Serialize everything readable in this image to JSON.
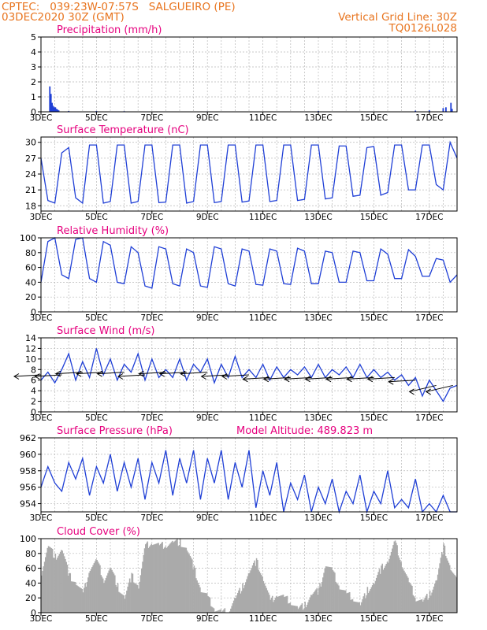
{
  "header": {
    "line1": "CPTEC:   039:23W-07:57S   SALGUEIRO (PE)",
    "line2": "03DEC2020 30Z (GMT)",
    "vgrid": "Vertical Grid Line: 30Z",
    "code": "TQ0126L028"
  },
  "colors": {
    "header": "#e8741e",
    "panel_title": "#e6007e",
    "line": "#1f3fd6",
    "cloud": "#aaaaaa",
    "wind_arrow": "#000000"
  },
  "chart_data": [
    {
      "id": "precip",
      "type": "bar",
      "title": "Precipitation (mm/h)",
      "xlabel": "",
      "ylabel": "",
      "ylim": [
        0,
        5
      ],
      "yticks": [
        "0",
        "1",
        "2",
        "3",
        "4",
        "5"
      ],
      "x_tick_labels": [
        "3DEC",
        "5DEC",
        "7DEC",
        "9DEC",
        "11DEC",
        "13DEC",
        "15DEC",
        "17DEC"
      ],
      "x_range_days": [
        0,
        15
      ],
      "series": [
        {
          "x": [
            0.32,
            0.36,
            0.4,
            0.44,
            0.48,
            0.52,
            0.56,
            0.6,
            0.64,
            1.0,
            2.0,
            3.0,
            6.0,
            10.0,
            13.5,
            14.0,
            14.5,
            14.6,
            14.78,
            14.82
          ],
          "values": [
            1.7,
            1.2,
            0.6,
            0.4,
            0.3,
            0.3,
            0.2,
            0.15,
            0.1,
            0.05,
            0.05,
            0.04,
            0.03,
            0.05,
            0.08,
            0.1,
            0.25,
            0.3,
            0.6,
            0.2
          ]
        }
      ]
    },
    {
      "id": "temp",
      "type": "line",
      "title": "Surface Temperature (nC)",
      "xlabel": "",
      "ylabel": "",
      "ylim": [
        17,
        31
      ],
      "yticks": [
        "18",
        "21",
        "24",
        "27",
        "30"
      ],
      "x_tick_labels": [
        "3DEC",
        "5DEC",
        "7DEC",
        "9DEC",
        "11DEC",
        "13DEC",
        "15DEC",
        "17DEC"
      ],
      "x_range_days": [
        0,
        15
      ],
      "series": [
        {
          "x": [
            0.0,
            0.25,
            0.5,
            0.75,
            1.0,
            1.25,
            1.5,
            1.75,
            2.0,
            2.25,
            2.5,
            2.75,
            3.0,
            3.25,
            3.5,
            3.75,
            4.0,
            4.25,
            4.5,
            4.75,
            5.0,
            5.25,
            5.5,
            5.75,
            6.0,
            6.25,
            6.5,
            6.75,
            7.0,
            7.25,
            7.5,
            7.75,
            8.0,
            8.25,
            8.5,
            8.75,
            9.0,
            9.25,
            9.5,
            9.75,
            10.0,
            10.25,
            10.5,
            10.75,
            11.0,
            11.25,
            11.5,
            11.75,
            12.0,
            12.25,
            12.5,
            12.75,
            13.0,
            13.25,
            13.5,
            13.75,
            14.0,
            14.25,
            14.5,
            14.75,
            15.0
          ],
          "values": [
            27,
            19,
            18.5,
            28,
            29,
            19.5,
            18.5,
            29.5,
            29.5,
            18.5,
            18.8,
            29.5,
            29.5,
            18.5,
            18.8,
            29.5,
            29.5,
            18.6,
            18.7,
            29.5,
            29.5,
            18.5,
            18.8,
            29.5,
            29.5,
            18.6,
            18.8,
            29.5,
            29.5,
            18.7,
            18.9,
            29.5,
            29.5,
            18.8,
            19,
            29.5,
            29.5,
            19,
            19.2,
            29.5,
            29.5,
            19.3,
            19.5,
            29.3,
            29.3,
            19.8,
            20,
            29,
            29.2,
            20,
            20.5,
            29.5,
            29.5,
            21,
            21,
            29.5,
            29.5,
            22,
            21,
            30,
            27
          ]
        }
      ]
    },
    {
      "id": "rh",
      "type": "line",
      "title": "Relative Humidity (%)",
      "xlabel": "",
      "ylabel": "",
      "ylim": [
        0,
        100
      ],
      "yticks": [
        "0",
        "20",
        "40",
        "60",
        "80",
        "100"
      ],
      "x_tick_labels": [
        "3DEC",
        "5DEC",
        "7DEC",
        "9DEC",
        "11DEC",
        "13DEC",
        "15DEC",
        "17DEC"
      ],
      "x_range_days": [
        0,
        15
      ],
      "series": [
        {
          "x": [
            0.0,
            0.25,
            0.5,
            0.75,
            1.0,
            1.25,
            1.5,
            1.75,
            2.0,
            2.25,
            2.5,
            2.75,
            3.0,
            3.25,
            3.5,
            3.75,
            4.0,
            4.25,
            4.5,
            4.75,
            5.0,
            5.25,
            5.5,
            5.75,
            6.0,
            6.25,
            6.5,
            6.75,
            7.0,
            7.25,
            7.5,
            7.75,
            8.0,
            8.25,
            8.5,
            8.75,
            9.0,
            9.25,
            9.5,
            9.75,
            10.0,
            10.25,
            10.5,
            10.75,
            11.0,
            11.25,
            11.5,
            11.75,
            12.0,
            12.25,
            12.5,
            12.75,
            13.0,
            13.25,
            13.5,
            13.75,
            14.0,
            14.25,
            14.5,
            14.75,
            15.0
          ],
          "values": [
            40,
            95,
            100,
            50,
            45,
            98,
            100,
            45,
            40,
            95,
            90,
            40,
            38,
            88,
            80,
            35,
            32,
            88,
            85,
            38,
            35,
            85,
            80,
            35,
            33,
            88,
            85,
            38,
            35,
            85,
            82,
            37,
            36,
            85,
            82,
            38,
            37,
            86,
            82,
            38,
            38,
            82,
            80,
            40,
            40,
            82,
            80,
            42,
            42,
            85,
            78,
            45,
            45,
            84,
            75,
            48,
            48,
            72,
            70,
            40,
            50
          ]
        }
      ]
    },
    {
      "id": "wind",
      "type": "line",
      "title": "Surface Wind (m/s)",
      "xlabel": "",
      "ylabel": "",
      "ylim": [
        0,
        14
      ],
      "yticks": [
        "0",
        "2",
        "4",
        "6",
        "8",
        "10",
        "12",
        "14"
      ],
      "x_tick_labels": [
        "3DEC",
        "5DEC",
        "7DEC",
        "9DEC",
        "11DEC",
        "13DEC",
        "15DEC",
        "17DEC"
      ],
      "x_range_days": [
        0,
        15
      ],
      "series": [
        {
          "x": [
            0.0,
            0.25,
            0.5,
            0.75,
            1.0,
            1.25,
            1.5,
            1.75,
            2.0,
            2.25,
            2.5,
            2.75,
            3.0,
            3.25,
            3.5,
            3.75,
            4.0,
            4.25,
            4.5,
            4.75,
            5.0,
            5.25,
            5.5,
            5.75,
            6.0,
            6.25,
            6.5,
            6.75,
            7.0,
            7.25,
            7.5,
            7.75,
            8.0,
            8.25,
            8.5,
            8.75,
            9.0,
            9.25,
            9.5,
            9.75,
            10.0,
            10.25,
            10.5,
            10.75,
            11.0,
            11.25,
            11.5,
            11.75,
            12.0,
            12.25,
            12.5,
            12.75,
            13.0,
            13.25,
            13.5,
            13.75,
            14.0,
            14.25,
            14.5,
            14.75,
            15.0
          ],
          "values": [
            6,
            7.5,
            5.5,
            8,
            11,
            6,
            9.5,
            6.5,
            12,
            7,
            10,
            6,
            9,
            7.5,
            11,
            6,
            10,
            6.5,
            8,
            6.5,
            10,
            6,
            9,
            7.5,
            10,
            5.5,
            9,
            6.5,
            10.5,
            6.5,
            8,
            6.5,
            9,
            6,
            8.5,
            6.5,
            8,
            7,
            8.5,
            6.5,
            9,
            6.5,
            8,
            7,
            8.5,
            6.5,
            9,
            6.5,
            8,
            6.5,
            7.5,
            6,
            7,
            5,
            6.5,
            3,
            6,
            4,
            2,
            4.5,
            5
          ]
        }
      ],
      "wind_arrows": [
        {
          "day": 0.0,
          "speed": 7,
          "dir": "from E"
        },
        {
          "day": 0.75,
          "speed": 7,
          "dir": "from E"
        },
        {
          "day": 1.5,
          "speed": 7.5,
          "dir": "from E"
        },
        {
          "day": 2.25,
          "speed": 7.5,
          "dir": "from E"
        },
        {
          "day": 3.0,
          "speed": 7.5,
          "dir": "from E"
        },
        {
          "day": 3.75,
          "speed": 7,
          "dir": "from E"
        },
        {
          "day": 4.5,
          "speed": 7.5,
          "dir": "from E"
        },
        {
          "day": 5.25,
          "speed": 7.5,
          "dir": "from E"
        },
        {
          "day": 6.0,
          "speed": 7.5,
          "dir": "from E"
        },
        {
          "day": 6.75,
          "speed": 7,
          "dir": "from E"
        },
        {
          "day": 7.5,
          "speed": 7,
          "dir": "from E"
        },
        {
          "day": 8.25,
          "speed": 6.5,
          "dir": "from E"
        },
        {
          "day": 9.0,
          "speed": 6.5,
          "dir": "from E"
        },
        {
          "day": 9.75,
          "speed": 6.5,
          "dir": "from E"
        },
        {
          "day": 10.5,
          "speed": 6.5,
          "dir": "from E"
        },
        {
          "day": 11.25,
          "speed": 6.5,
          "dir": "from E"
        },
        {
          "day": 12.0,
          "speed": 6.5,
          "dir": "from E"
        },
        {
          "day": 12.75,
          "speed": 6.5,
          "dir": "from E"
        },
        {
          "day": 13.5,
          "speed": 6,
          "dir": "from E"
        },
        {
          "day": 14.25,
          "speed": 5,
          "dir": "from NE"
        },
        {
          "day": 14.85,
          "speed": 5,
          "dir": "from NE"
        }
      ]
    },
    {
      "id": "pres",
      "type": "line",
      "title": "Surface Pressure (hPa)",
      "note": "Model Altitude: 489.823 m",
      "xlabel": "",
      "ylabel": "",
      "ylim": [
        953,
        962
      ],
      "yticks": [
        "954",
        "956",
        "958",
        "960",
        "962"
      ],
      "x_tick_labels": [
        "3DEC",
        "5DEC",
        "7DEC",
        "9DEC",
        "11DEC",
        "13DEC",
        "15DEC",
        "17DEC"
      ],
      "x_range_days": [
        0,
        15
      ],
      "series": [
        {
          "x": [
            0.0,
            0.25,
            0.5,
            0.75,
            1.0,
            1.25,
            1.5,
            1.75,
            2.0,
            2.25,
            2.5,
            2.75,
            3.0,
            3.25,
            3.5,
            3.75,
            4.0,
            4.25,
            4.5,
            4.75,
            5.0,
            5.25,
            5.5,
            5.75,
            6.0,
            6.25,
            6.5,
            6.75,
            7.0,
            7.25,
            7.5,
            7.75,
            8.0,
            8.25,
            8.5,
            8.75,
            9.0,
            9.25,
            9.5,
            9.75,
            10.0,
            10.25,
            10.5,
            10.75,
            11.0,
            11.25,
            11.5,
            11.75,
            12.0,
            12.25,
            12.5,
            12.75,
            13.0,
            13.25,
            13.5,
            13.75,
            14.0,
            14.25,
            14.5,
            14.75,
            15.0
          ],
          "values": [
            956,
            958.5,
            956.5,
            955.5,
            959,
            957,
            959.5,
            955,
            958.5,
            956.5,
            960,
            955.5,
            959,
            956,
            959.5,
            954.5,
            959,
            956.5,
            960.5,
            955,
            959.5,
            956.5,
            960.5,
            954.5,
            959.5,
            956.5,
            960.5,
            954.5,
            959,
            956,
            960.5,
            953.5,
            958,
            955,
            959,
            953,
            956.5,
            954.5,
            957.5,
            953,
            956,
            954,
            957,
            953,
            955.5,
            954,
            957.5,
            953,
            955.5,
            954,
            958,
            953.5,
            954.5,
            953.5,
            957,
            953,
            954,
            952.5,
            955,
            953,
            952.5
          ]
        }
      ]
    },
    {
      "id": "cloud",
      "type": "area",
      "title": "Cloud Cover (%)",
      "xlabel": "",
      "ylabel": "",
      "ylim": [
        0,
        100
      ],
      "yticks": [
        "0",
        "20",
        "40",
        "60",
        "80",
        "100"
      ],
      "x_tick_labels": [
        "3DEC",
        "5DEC",
        "7DEC",
        "9DEC",
        "11DEC",
        "13DEC",
        "15DEC",
        "17DEC"
      ],
      "x_range_days": [
        0,
        15
      ],
      "series": [
        {
          "x": [
            0.0,
            0.25,
            0.5,
            0.75,
            1.0,
            1.25,
            1.5,
            1.75,
            2.0,
            2.25,
            2.5,
            2.75,
            3.0,
            3.25,
            3.5,
            3.75,
            4.0,
            4.25,
            4.5,
            4.75,
            5.0,
            5.25,
            5.5,
            5.75,
            6.0,
            6.25,
            6.5,
            6.75,
            7.0,
            7.25,
            7.5,
            7.75,
            8.0,
            8.25,
            8.5,
            8.75,
            9.0,
            9.25,
            9.5,
            9.75,
            10.0,
            10.25,
            10.5,
            10.75,
            11.0,
            11.25,
            11.5,
            11.75,
            12.0,
            12.25,
            12.5,
            12.75,
            13.0,
            13.25,
            13.5,
            13.75,
            14.0,
            14.25,
            14.5,
            14.75,
            15.0
          ],
          "values": [
            55,
            90,
            75,
            85,
            50,
            40,
            25,
            60,
            70,
            45,
            60,
            35,
            20,
            50,
            35,
            90,
            95,
            90,
            92,
            95,
            95,
            85,
            60,
            30,
            20,
            5,
            0,
            3,
            20,
            35,
            55,
            70,
            45,
            15,
            25,
            20,
            15,
            5,
            10,
            25,
            30,
            65,
            55,
            35,
            25,
            20,
            10,
            30,
            40,
            60,
            70,
            95,
            65,
            40,
            20,
            15,
            25,
            45,
            90,
            60,
            40
          ]
        }
      ]
    }
  ]
}
